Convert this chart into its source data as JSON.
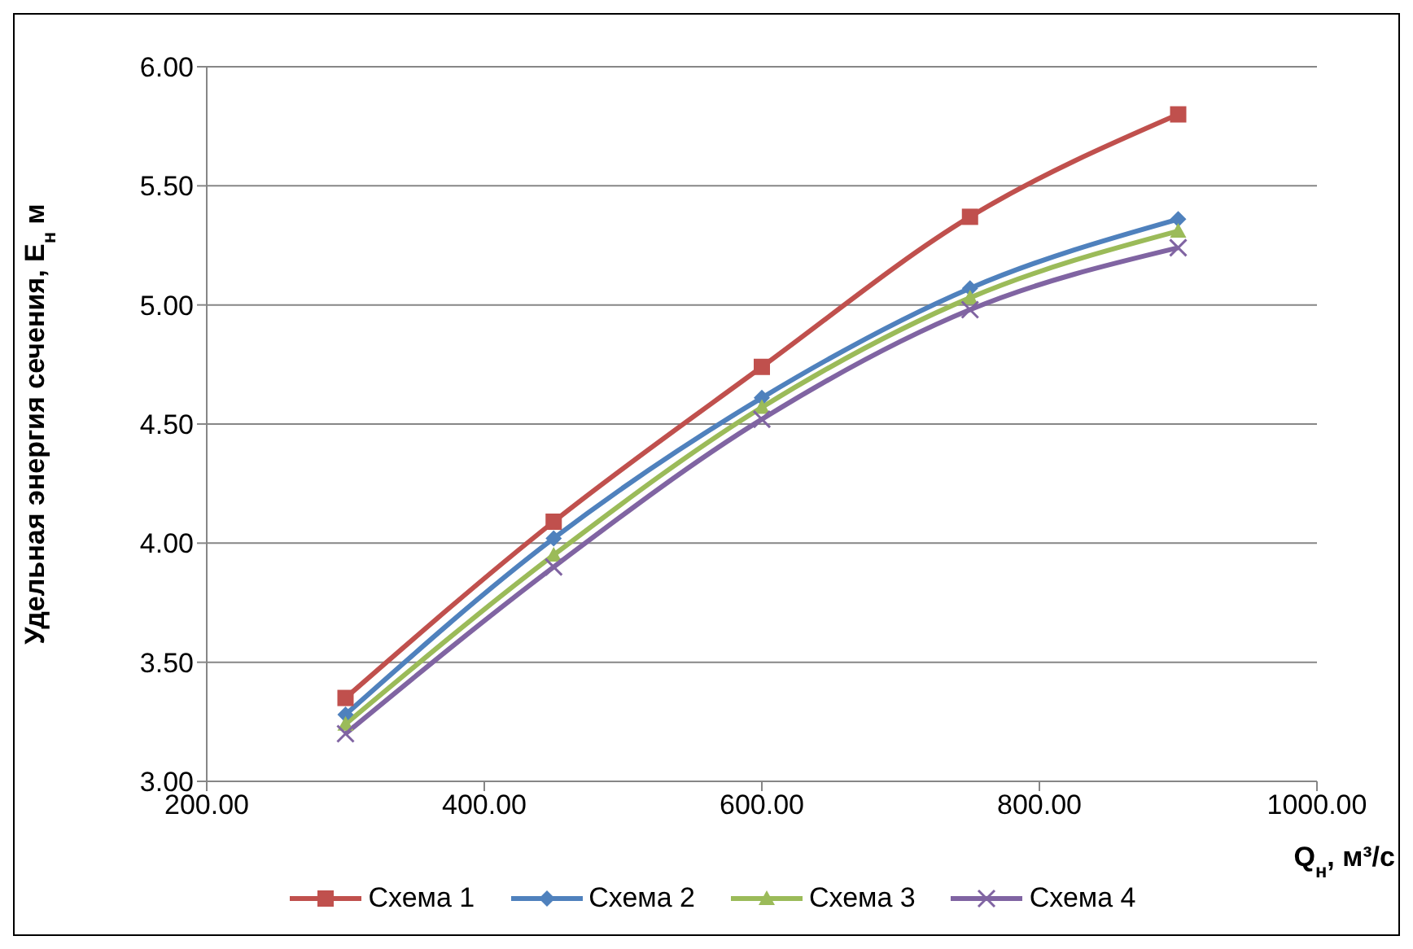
{
  "chart_data": {
    "type": "line",
    "xlabel": "Q$_{н}$, м³/с",
    "ylabel": "Удельная энергия сечения, E$_{н}$ м",
    "x": [
      300,
      450,
      600,
      750,
      900
    ],
    "xlim": [
      200,
      1000
    ],
    "xticks": [
      {
        "value": 200,
        "label": "200.00"
      },
      {
        "value": 400,
        "label": "400.00"
      },
      {
        "value": 600,
        "label": "600.00"
      },
      {
        "value": 800,
        "label": "800.00"
      },
      {
        "value": 1000,
        "label": "1000.00"
      }
    ],
    "ylim": [
      3,
      6
    ],
    "yticks": [
      {
        "value": 3,
        "label": "3.00"
      },
      {
        "value": 3.5,
        "label": "3.50"
      },
      {
        "value": 4,
        "label": "4.00"
      },
      {
        "value": 4.5,
        "label": "4.50"
      },
      {
        "value": 5,
        "label": "5.00"
      },
      {
        "value": 5.5,
        "label": "5.50"
      },
      {
        "value": 6,
        "label": "6.00"
      }
    ],
    "grid": "y",
    "legend": "bottom",
    "line_style": "solid",
    "series": [
      {
        "name": "Схема 1",
        "color": "#c0504d",
        "marker": "square",
        "values": [
          3.35,
          4.09,
          4.74,
          5.37,
          5.8
        ]
      },
      {
        "name": "Схема 2",
        "color": "#4f81bd",
        "marker": "diamond",
        "values": [
          3.28,
          4.02,
          4.61,
          5.07,
          5.36
        ]
      },
      {
        "name": "Схема 3",
        "color": "#9bbb59",
        "marker": "triangle",
        "values": [
          3.24,
          3.95,
          4.57,
          5.03,
          5.31
        ]
      },
      {
        "name": "Схема 4",
        "color": "#8064a2",
        "marker": "cross",
        "values": [
          3.2,
          3.9,
          4.52,
          4.98,
          5.24
        ]
      }
    ]
  }
}
